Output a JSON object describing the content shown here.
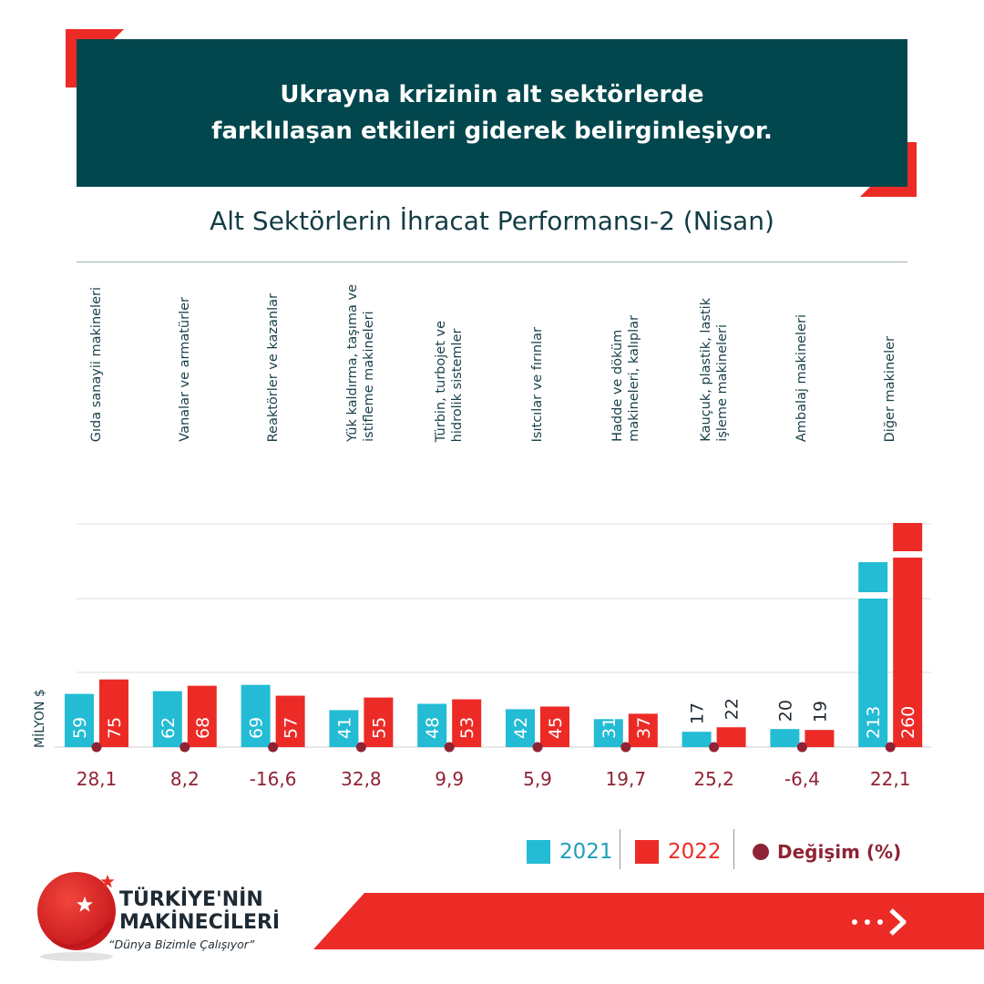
{
  "banner": {
    "line1": "Ukrayna krizinin alt sektörlerde",
    "line2": "farklılaşan etkileri giderek belirginleşiyor."
  },
  "unit_label": "MİLYON $",
  "legend": {
    "y2021": "2021",
    "y2022": "2022",
    "change": "Değişim (%)"
  },
  "logo": {
    "line1": "TÜRKİYE'NİN",
    "line2": "MAKİNECİLERİ",
    "slogan": "“Dünya Bizimle Çalışıyor”"
  },
  "colors": {
    "navy": "#02474d",
    "y2021": "#23bcd4",
    "y2022": "#ec2b27",
    "change": "#8f2335"
  },
  "chart_data": {
    "type": "bar",
    "title": "Alt Sektörlerin İhracat Performansı-2 (Nisan)",
    "categories": [
      "Gıda sanayii makineleri",
      "Vanalar  ve armatürler",
      "Reaktörler ve kazanlar",
      "Yük kaldırma, taşıma ve\nistifleme makineleri",
      "Türbin, turbojet ve\nhidrolik sistemler",
      "Isıtcılar ve fırınlar",
      "Hadde ve döküm\nmakineleri, kalıplar",
      "Kauçuk, plastik, lastik\nişleme makineleri",
      "Ambalaj makineleri",
      "Diğer makineler"
    ],
    "series": [
      {
        "name": "2021",
        "values": [
          59,
          62,
          69,
          41,
          48,
          42,
          31,
          17,
          20,
          213
        ]
      },
      {
        "name": "2022",
        "values": [
          75,
          68,
          57,
          55,
          53,
          45,
          37,
          22,
          19,
          260
        ]
      }
    ],
    "change_labels": [
      "28,1",
      "8,2",
      "-16,6",
      "32,8",
      "9,9",
      "5,9",
      "19,7",
      "25,2",
      "-6,4",
      "22,1"
    ],
    "ylabel": "MİLYON $",
    "axis_break_above": 85
  }
}
